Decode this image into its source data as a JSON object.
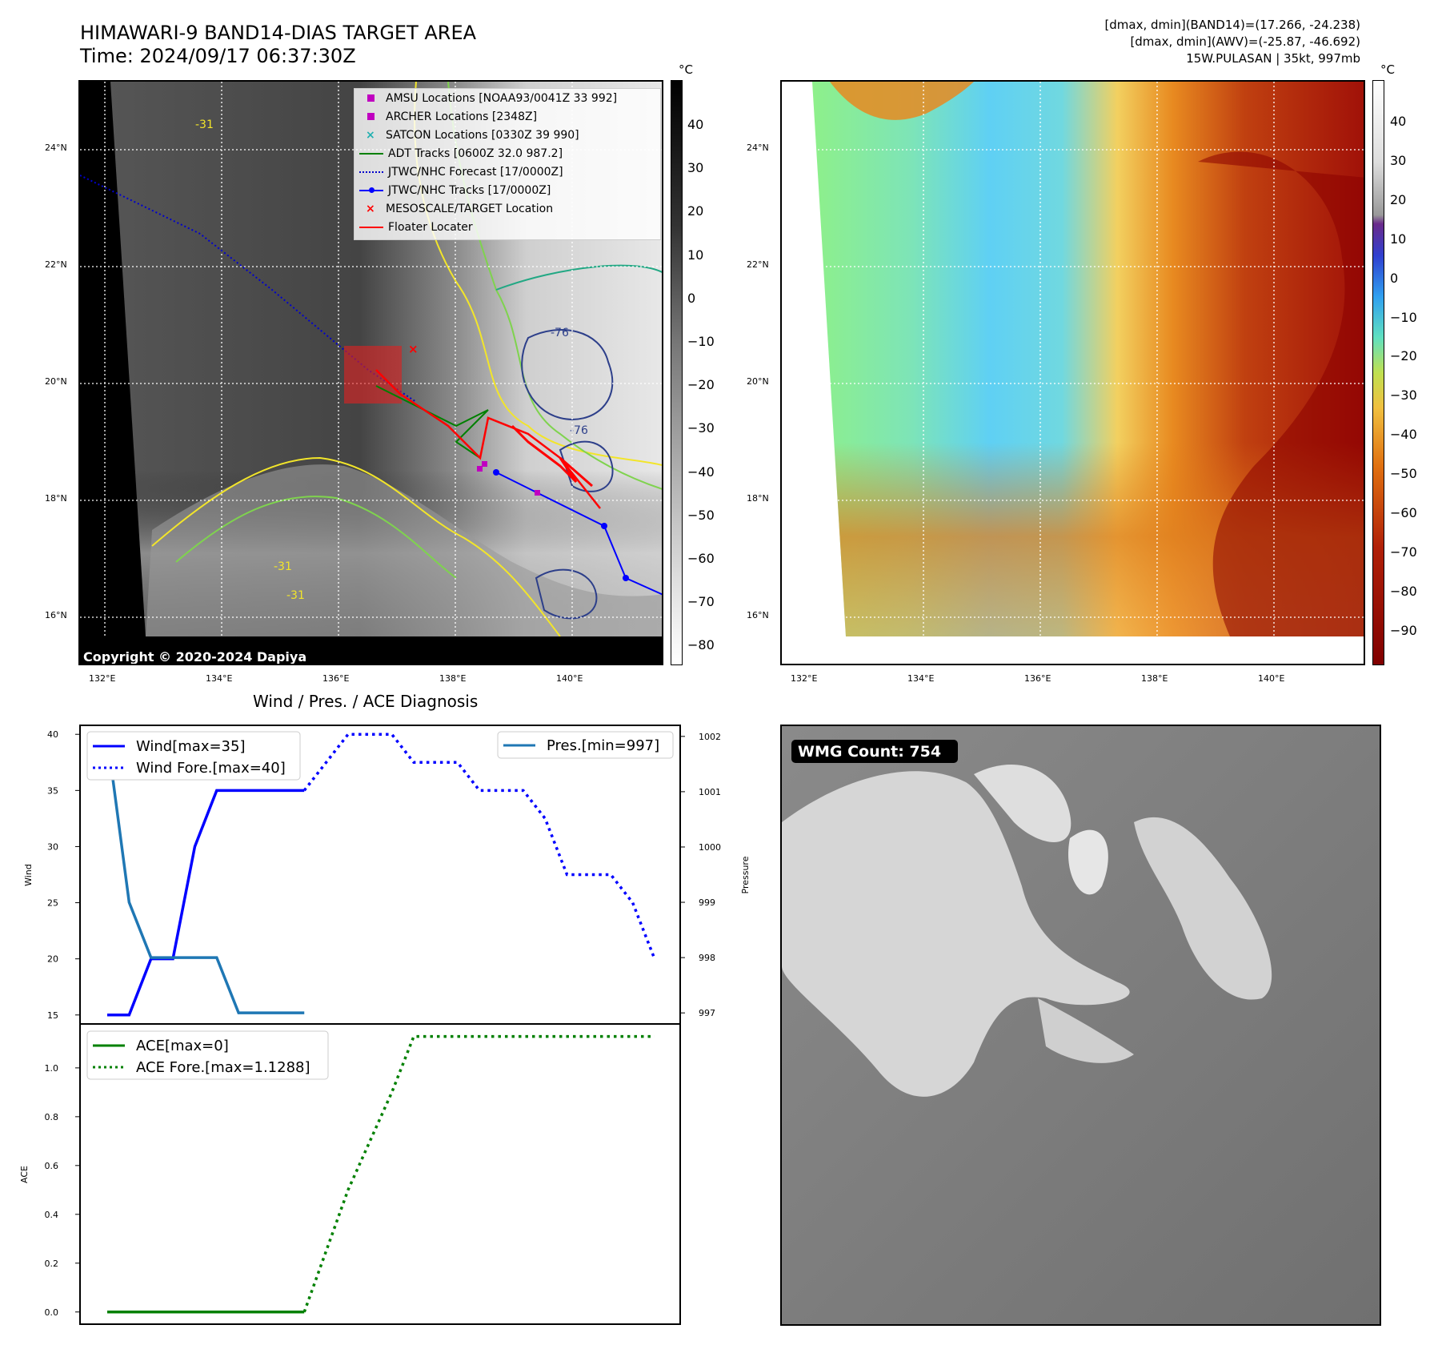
{
  "header": {
    "title_line1": "HIMAWARI-9 BAND14-DIAS TARGET AREA",
    "title_line2": "Time: 2024/09/17 06:37:30Z",
    "info_line1": "[dmax, dmin](BAND14)=(17.266, -24.238)",
    "info_line2": "[dmax, dmin](AWV)=(-25.87, -46.692)",
    "info_line3": "15W.PULASAN | 35kt, 997mb"
  },
  "map_axes": {
    "lat_labels": [
      "24°N",
      "22°N",
      "20°N",
      "18°N",
      "16°N"
    ],
    "lon_labels": [
      "132°E",
      "134°E",
      "136°E",
      "138°E",
      "140°E"
    ]
  },
  "colorbar_left": {
    "unit": "°C",
    "ticks": [
      "40",
      "30",
      "20",
      "10",
      "0",
      "−10",
      "−20",
      "−30",
      "−40",
      "−50",
      "−60",
      "−70",
      "−80"
    ]
  },
  "colorbar_right": {
    "unit": "°C",
    "ticks": [
      "40",
      "30",
      "20",
      "10",
      "0",
      "−10",
      "−20",
      "−30",
      "−40",
      "−50",
      "−60",
      "−70",
      "−80",
      "−90"
    ]
  },
  "map_legend": {
    "items": [
      {
        "label": "AMSU Locations [NOAA93/0041Z 33 992]",
        "color": "#c000c0",
        "marker": "square"
      },
      {
        "label": "ARCHER Locations [2348Z]",
        "color": "#c000c0",
        "marker": "square"
      },
      {
        "label": "SATCON Locations [0330Z 39 990]",
        "color": "#20b0b0",
        "marker": "x"
      },
      {
        "label": "ADT Tracks [0600Z 32.0 987.2]",
        "color": "#008000",
        "marker": "line"
      },
      {
        "label": "JTWC/NHC Forecast [17/0000Z]",
        "color": "#0000cc",
        "marker": "dotted"
      },
      {
        "label": "JTWC/NHC Tracks [17/0000Z]",
        "color": "#0000ff",
        "marker": "dotline"
      },
      {
        "label": "MESOSCALE/TARGET Location",
        "color": "#ff0000",
        "marker": "x"
      },
      {
        "label": "Floater Locater",
        "color": "#ff0000",
        "marker": "line"
      }
    ]
  },
  "copyright": "Copyright © 2020-2024 Dapiya",
  "contour_labels": [
    "-76",
    "-76",
    "-31",
    "-31",
    "-31"
  ],
  "wmg": {
    "badge": "WMG Count: 754"
  },
  "diag": {
    "title": "Wind / Pres. / ACE Diagnosis",
    "wind_ylabel": "Wind",
    "pres_ylabel": "Pressure",
    "ace_ylabel": "ACE",
    "legend_wind": "Wind[max=35]",
    "legend_wind_fore": "Wind Fore.[max=40]",
    "legend_pres": "Pres.[min=997]",
    "legend_ace": "ACE[max=0]",
    "legend_ace_fore": "ACE Fore.[max=1.1288]",
    "wind_ticks": [
      "15",
      "20",
      "25",
      "30",
      "35",
      "40"
    ],
    "pres_ticks": [
      "997",
      "998",
      "999",
      "1000",
      "1001",
      "1002"
    ],
    "ace_ticks": [
      "0.0",
      "0.2",
      "0.4",
      "0.6",
      "0.8",
      "1.0"
    ]
  },
  "chart_data": [
    {
      "type": "line",
      "title": "Wind / Pres. / ACE Diagnosis",
      "ylabel": "Wind",
      "ylim": [
        14.2,
        40.8
      ],
      "x": [
        0,
        1,
        2,
        3,
        4,
        5,
        6,
        7,
        8,
        9,
        10,
        11,
        12,
        13,
        14,
        15,
        16,
        17,
        18,
        19,
        20,
        21,
        22,
        23,
        24,
        25
      ],
      "series": [
        {
          "name": "Wind[max=35]",
          "color": "#0000ff",
          "x": [
            0,
            1,
            2,
            3,
            4,
            5,
            6,
            7,
            8,
            9
          ],
          "values": [
            15,
            15,
            20,
            20,
            30,
            35,
            35,
            35,
            35,
            35
          ]
        },
        {
          "name": "Wind Fore.[max=40]",
          "color": "#0000ff",
          "dash": "dotted",
          "x": [
            9,
            10,
            11,
            12,
            13,
            14,
            15,
            16,
            17,
            18,
            19,
            20,
            21,
            22,
            23,
            24,
            25
          ],
          "values": [
            35,
            37.5,
            40,
            40,
            40,
            37.5,
            37.5,
            37.5,
            35,
            35,
            35,
            32.5,
            27.5,
            27.5,
            27.5,
            25,
            20
          ]
        },
        {
          "name": "Pres.[min=997]",
          "color": "#1f77b4",
          "axis": "right",
          "ylim": [
            996.8,
            1002.2
          ],
          "x": [
            0,
            1,
            2,
            3,
            4,
            5,
            6,
            7,
            8,
            9
          ],
          "values": [
            1002,
            999,
            998,
            998,
            998,
            998,
            997,
            997,
            997,
            997
          ]
        }
      ],
      "right_axis": {
        "label": "Pressure",
        "ylim": [
          996.8,
          1002.2
        ]
      }
    },
    {
      "type": "line",
      "ylabel": "ACE",
      "ylim": [
        -0.05,
        1.18
      ],
      "series": [
        {
          "name": "ACE[max=0]",
          "color": "#008000",
          "x": [
            0,
            1,
            2,
            3,
            4,
            5,
            6,
            7,
            8,
            9
          ],
          "values": [
            0,
            0,
            0,
            0,
            0,
            0,
            0,
            0,
            0,
            0
          ]
        },
        {
          "name": "ACE Fore.[max=1.1288]",
          "color": "#008000",
          "dash": "dotted",
          "x": [
            9,
            10,
            11,
            12,
            13,
            14,
            15,
            16,
            17,
            18,
            19,
            20,
            21,
            22,
            23,
            24,
            25
          ],
          "values": [
            0,
            0.25,
            0.5,
            0.7,
            0.9,
            1.1288,
            1.1288,
            1.1288,
            1.1288,
            1.1288,
            1.1288,
            1.1288,
            1.1288,
            1.1288,
            1.1288,
            1.1288,
            1.1288
          ]
        }
      ]
    }
  ]
}
